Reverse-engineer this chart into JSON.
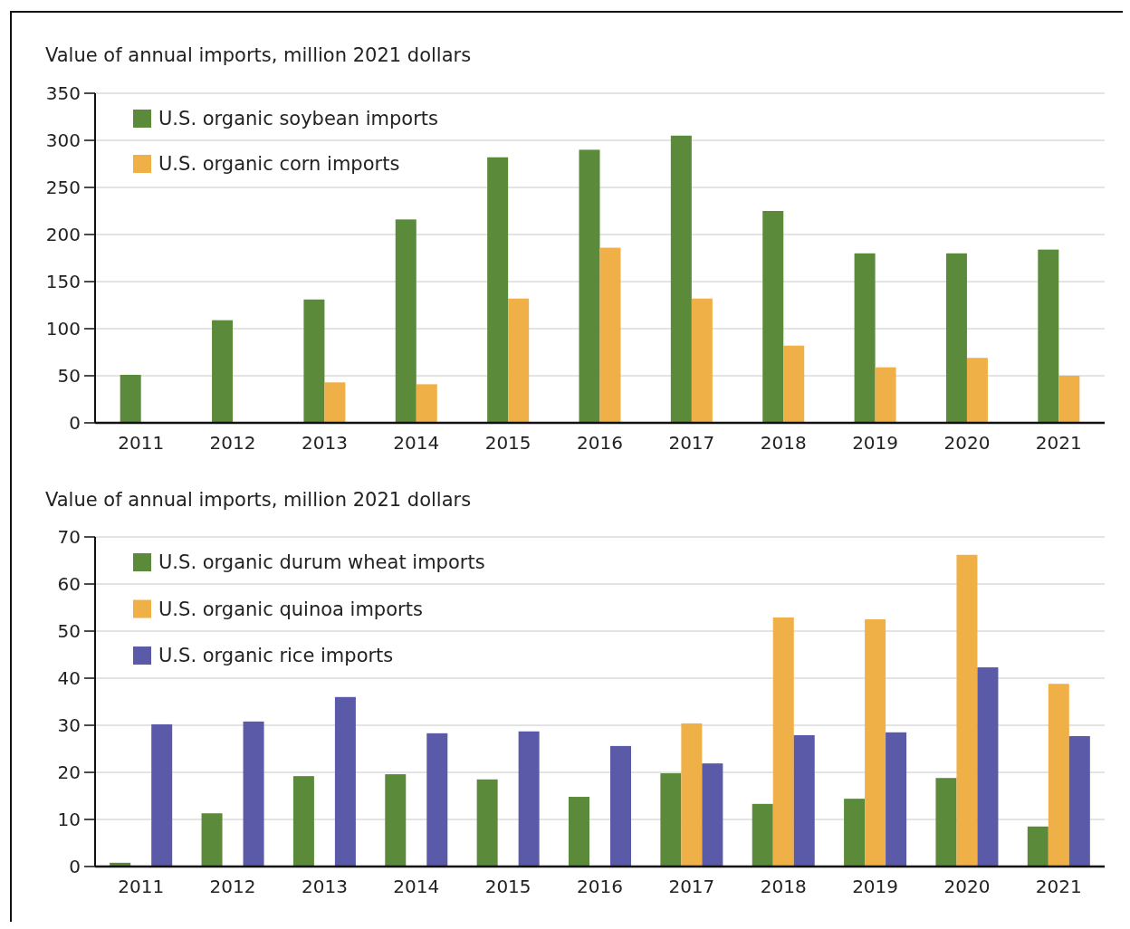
{
  "chart_data": [
    {
      "type": "bar",
      "ylabel": "Value of annual imports, million 2021 dollars",
      "categories": [
        "2011",
        "2012",
        "2013",
        "2014",
        "2015",
        "2016",
        "2017",
        "2018",
        "2019",
        "2020",
        "2021"
      ],
      "series": [
        {
          "name": "U.S. organic soybean imports",
          "color": "#5b8a3a",
          "values": [
            51,
            109,
            131,
            216,
            282,
            290,
            305,
            225,
            180,
            180,
            184
          ]
        },
        {
          "name": "U.S. organic corn imports",
          "color": "#f0b048",
          "values": [
            null,
            null,
            43,
            41,
            132,
            186,
            132,
            82,
            59,
            69,
            50
          ]
        }
      ],
      "ylim": [
        0,
        350
      ],
      "yticks": [
        0,
        50,
        100,
        150,
        200,
        250,
        300,
        350
      ],
      "grid": "y",
      "legend": "top left"
    },
    {
      "type": "bar",
      "ylabel": "Value of annual imports, million 2021 dollars",
      "categories": [
        "2011",
        "2012",
        "2013",
        "2014",
        "2015",
        "2016",
        "2017",
        "2018",
        "2019",
        "2020",
        "2021"
      ],
      "series": [
        {
          "name": "U.S. organic durum wheat imports",
          "color": "#5b8a3a",
          "values": [
            0.8,
            11.3,
            19.2,
            19.6,
            18.5,
            14.8,
            19.8,
            13.3,
            14.4,
            18.8,
            8.5
          ]
        },
        {
          "name": "U.S. organic quinoa imports",
          "color": "#f0b048",
          "values": [
            null,
            null,
            null,
            null,
            null,
            null,
            30.4,
            52.9,
            52.5,
            66.2,
            38.8
          ]
        },
        {
          "name": "U.S. organic rice imports",
          "color": "#5a5aa8",
          "values": [
            30.2,
            30.8,
            36,
            28.3,
            28.7,
            25.6,
            21.9,
            27.9,
            28.5,
            42.3,
            27.7
          ]
        }
      ],
      "ylim": [
        0,
        70
      ],
      "yticks": [
        0,
        10,
        20,
        30,
        40,
        50,
        60,
        70
      ],
      "grid": "y",
      "legend": "top left"
    }
  ]
}
